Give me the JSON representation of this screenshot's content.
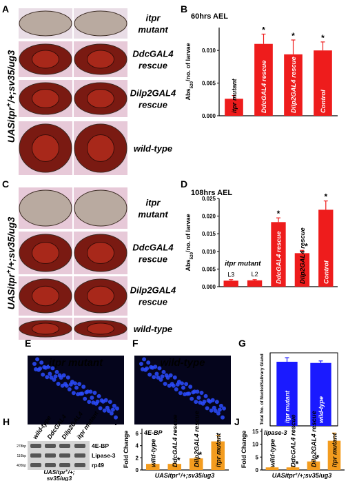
{
  "panel_letters": [
    "A",
    "B",
    "C",
    "D",
    "E",
    "F",
    "G",
    "H",
    "I",
    "J"
  ],
  "larvae_A": {
    "labels": [
      [
        "itpr",
        "mutant"
      ],
      [
        "DdcGAL4",
        "rescue"
      ],
      [
        "Dilp2GAL4",
        "rescue"
      ],
      [
        "wild-type"
      ]
    ],
    "genotype": [
      "UASitpr",
      "+",
      "/+;sv35/ug3"
    ]
  },
  "larvae_C": {
    "labels": [
      [
        "itpr",
        "mutant"
      ],
      [
        "DdcGAL4",
        "rescue"
      ],
      [
        "Dilp2GAL4",
        "rescue"
      ],
      [
        "wild-type"
      ]
    ],
    "genotype": [
      "UASitpr",
      "+",
      "/+;sv35/ug3"
    ]
  },
  "stain_labels": [
    "itpr mutant",
    "wild-type"
  ],
  "gel": {
    "lanes": [
      "wild-type",
      "DdcGAL4",
      "Dilp2GAL4",
      "itpr mutant"
    ],
    "genes": [
      "4E-BP",
      "Lipase-3",
      "rp49"
    ],
    "sizes": [
      "278bp",
      "116bp",
      "405bp"
    ],
    "genotype": [
      "UASitpr",
      "+",
      "/+;",
      "sv35/ug3"
    ]
  },
  "chart_data": [
    {
      "type": "bar",
      "title": "60hrs AEL",
      "ylabel_parts": [
        "Abs",
        "520",
        "/no. of larvae"
      ],
      "categories": [
        "itpr mutant",
        "DdcGAL4 rescue",
        "Dilp2GAL4 rescue",
        "Control"
      ],
      "values": [
        0.0026,
        0.011,
        0.0094,
        0.01
      ],
      "errors": [
        0.0005,
        0.0015,
        0.0022,
        0.0013
      ],
      "significance": [
        null,
        "*",
        "*",
        "*"
      ],
      "color": "#ee1c1c",
      "ylim": [
        0,
        0.0135
      ],
      "yticks": [
        {
          "value": 0,
          "label": "0.000"
        },
        {
          "value": 0.005,
          "label": "0.005"
        },
        {
          "value": 0.01,
          "label": "0.010"
        }
      ]
    },
    {
      "type": "bar",
      "title": "108hrs AEL",
      "ylabel_parts": [
        "Abs",
        "520",
        "/no. of larvae"
      ],
      "group_label": "itpr mutant",
      "categories": [
        "L3",
        "L2",
        "DdcGAL4 rescue",
        "Dilp2GAL4 rescue",
        "Control"
      ],
      "values": [
        0.0017,
        0.0018,
        0.0183,
        0.0095,
        0.0218
      ],
      "errors": [
        0.0003,
        0.0002,
        0.0012,
        0.0008,
        0.0025
      ],
      "significance": [
        null,
        null,
        "*",
        "*",
        "*"
      ],
      "color": "#ee1c1c",
      "ylim": [
        0,
        0.025
      ],
      "yticks": [
        {
          "value": 0,
          "label": "0.000"
        },
        {
          "value": 0.005,
          "label": "0.005"
        },
        {
          "value": 0.01,
          "label": "0.010"
        },
        {
          "value": 0.015,
          "label": "0.015"
        },
        {
          "value": 0.02,
          "label": "0.020"
        },
        {
          "value": 0.025,
          "label": "0.025"
        }
      ]
    },
    {
      "type": "bar",
      "ylabel": "Total No. of Nuclei/Salivary Gland",
      "categories": [
        "itpr mutant",
        "wild-type"
      ],
      "values": [
        158,
        155
      ],
      "errors": [
        10,
        5
      ],
      "color": "#1a1aff",
      "ylim": [
        0,
        180
      ]
    },
    {
      "type": "bar",
      "title": "4E-BP",
      "ylabel": "Fold Change",
      "xlabel_parts": [
        "UASitpr",
        "+",
        "/+;sv35/ug3"
      ],
      "categories": [
        "wild-type",
        "DdcGAL4 rescue",
        "Dilp2GAL4 rescue",
        "itpr mutant"
      ],
      "values": [
        1,
        1,
        1.9,
        4.7
      ],
      "errors": [
        0,
        0.1,
        0.15,
        1.0
      ],
      "significance": [
        null,
        "*",
        "*",
        null
      ],
      "color": "#f39c1f",
      "ylim": [
        0,
        6.8
      ],
      "yticks": [
        0,
        2,
        4,
        6
      ]
    },
    {
      "type": "bar",
      "title": "lipase-3",
      "ylabel": "Fold Change",
      "xlabel_parts": [
        "UASitpr",
        "+",
        "/+;sv35/ug3"
      ],
      "categories": [
        "wild-type",
        "DdcGAL4 rescue",
        "Dilp2GAL4 rescue",
        "itpr mutant"
      ],
      "values": [
        1,
        1,
        3.3,
        11.3
      ],
      "errors": [
        0,
        0.15,
        0.4,
        3.0
      ],
      "significance": [
        null,
        "*",
        "*",
        null
      ],
      "color": "#f39c1f",
      "ylim": [
        0,
        16
      ],
      "yticks": [
        0,
        5,
        10,
        15
      ]
    }
  ]
}
